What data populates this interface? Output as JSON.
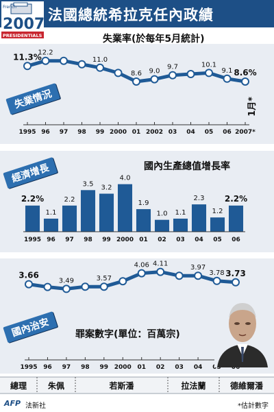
{
  "header": {
    "title": "法國總統希拉克任內政績",
    "logo": {
      "small": "French",
      "year": "2007",
      "tag": "PRESIDENTIALS"
    }
  },
  "sections": {
    "unemployment": {
      "banner": "失業情況",
      "note": "1月*"
    },
    "economy": {
      "banner": "經濟增長"
    },
    "security": {
      "banner": "國內治安"
    }
  },
  "timeline": {
    "label": "總理",
    "names": [
      "朱佩",
      "若斯潘",
      "拉法蘭",
      "德維爾潘"
    ]
  },
  "footer": {
    "afp": "AFP",
    "agency": "法新社",
    "estimate_note": "*估計數字"
  },
  "colors": {
    "header_blue": "#1d4f86",
    "accent_blue": "#2d6fb0",
    "line_blue": "#1f5a96",
    "panel_bg": "#e9edf3"
  },
  "chart_data": [
    {
      "type": "line",
      "title": "失業率(於每年5月統計)",
      "categories": [
        "1995",
        "96",
        "97",
        "98",
        "99",
        "2000",
        "01",
        "2002",
        "03",
        "04",
        "05",
        "06",
        "2007*"
      ],
      "values": [
        11.3,
        12.2,
        12.2,
        11.6,
        11.0,
        10.1,
        8.6,
        9.0,
        9.7,
        9.9,
        10.1,
        9.1,
        8.6
      ],
      "labels": [
        "11.3%",
        "12.2",
        "",
        "",
        "11.0",
        "",
        "8.6",
        "9.0",
        "9.7",
        "",
        "10.1",
        "9.1",
        "8.6%"
      ],
      "ylim": [
        8,
        13
      ]
    },
    {
      "type": "bar",
      "title": "國內生產總值增長率",
      "categories": [
        "1995",
        "96",
        "97",
        "98",
        "99",
        "2000",
        "01",
        "02",
        "03",
        "04",
        "05",
        "06"
      ],
      "values": [
        2.2,
        1.1,
        2.2,
        3.5,
        3.2,
        4.0,
        1.9,
        1.0,
        1.1,
        2.3,
        1.2,
        2.2
      ],
      "labels": [
        "2.2%",
        "1.1",
        "2.2",
        "3.5",
        "3.2",
        "4.0",
        "1.9",
        "1.0",
        "1.1",
        "2.3",
        "1.2",
        "2.2%"
      ],
      "ylim": [
        0,
        4.5
      ]
    },
    {
      "type": "line",
      "title": "罪案數字(單位：百萬宗)",
      "categories": [
        "1995",
        "96",
        "97",
        "98",
        "99",
        "2000",
        "01",
        "02",
        "03",
        "04",
        "05",
        "06"
      ],
      "values": [
        3.66,
        3.56,
        3.49,
        3.57,
        3.57,
        3.77,
        4.06,
        4.11,
        3.97,
        3.97,
        3.78,
        3.73
      ],
      "labels": [
        "3.66",
        "",
        "3.49",
        "",
        "3.57",
        "",
        "4.06",
        "4.11",
        "",
        "3.97",
        "3.78",
        "3.73"
      ],
      "ylim": [
        3.3,
        4.3
      ]
    }
  ]
}
